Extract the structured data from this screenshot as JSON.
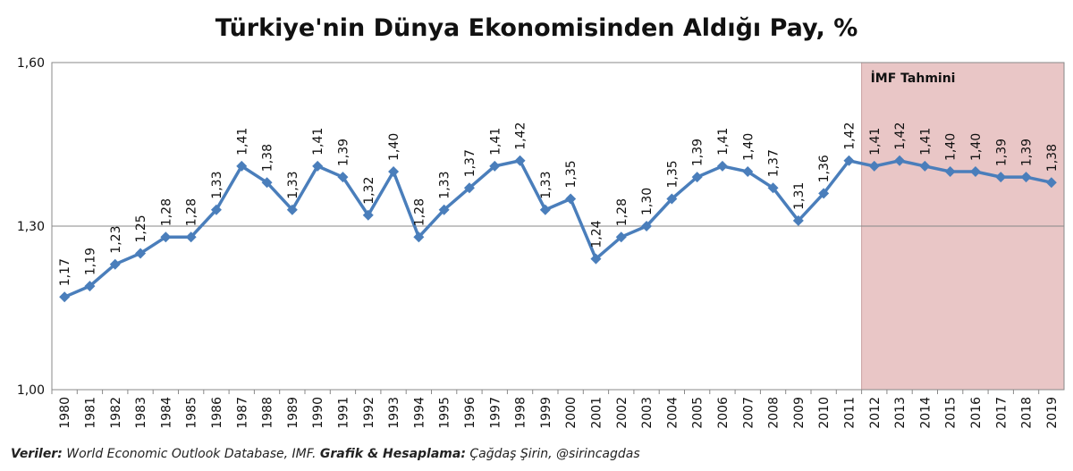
{
  "chart_data": {
    "type": "line",
    "title": "Türkiye'nin Dünya Ekonomisinden Aldığı Pay, %",
    "categories": [
      "1980",
      "1981",
      "1982",
      "1983",
      "1984",
      "1985",
      "1986",
      "1987",
      "1988",
      "1989",
      "1990",
      "1991",
      "1992",
      "1993",
      "1994",
      "1995",
      "1996",
      "1997",
      "1998",
      "1999",
      "2000",
      "2001",
      "2002",
      "2003",
      "2004",
      "2005",
      "2006",
      "2007",
      "2008",
      "2009",
      "2010",
      "2011",
      "2012",
      "2013",
      "2014",
      "2015",
      "2016",
      "2017",
      "2018",
      "2019"
    ],
    "values": [
      1.17,
      1.19,
      1.23,
      1.25,
      1.28,
      1.28,
      1.33,
      1.41,
      1.38,
      1.33,
      1.41,
      1.39,
      1.32,
      1.4,
      1.28,
      1.33,
      1.37,
      1.41,
      1.42,
      1.33,
      1.35,
      1.24,
      1.28,
      1.3,
      1.35,
      1.39,
      1.41,
      1.4,
      1.37,
      1.31,
      1.36,
      1.42,
      1.41,
      1.42,
      1.41,
      1.4,
      1.4,
      1.39,
      1.39,
      1.38
    ],
    "value_labels": [
      "1,17",
      "1,19",
      "1,23",
      "1,25",
      "1,28",
      "1,28",
      "1,33",
      "1,41",
      "1,38",
      "1,33",
      "1,41",
      "1,39",
      "1,32",
      "1,40",
      "1,28",
      "1,33",
      "1,37",
      "1,41",
      "1,42",
      "1,33",
      "1,35",
      "1,24",
      "1,28",
      "1,30",
      "1,35",
      "1,39",
      "1,41",
      "1,40",
      "1,37",
      "1,31",
      "1,36",
      "1,42",
      "1,41",
      "1,42",
      "1,41",
      "1,40",
      "1,40",
      "1,39",
      "1,39",
      "1,38"
    ],
    "color": "#4a7ebb",
    "ylim": [
      1.0,
      1.6
    ],
    "yticks": [
      {
        "value": 1.0,
        "label": "1,00"
      },
      {
        "value": 1.3,
        "label": "1,30"
      },
      {
        "value": 1.6,
        "label": "1,60"
      }
    ],
    "grid": true,
    "shade": {
      "label": "İMF Tahmini",
      "from": "2012",
      "to": "2019",
      "color": "#e9c6c6"
    },
    "source": [
      "Veriler:",
      "World Economic Outlook Database, IMF.",
      "Grafik & Hesaplama:",
      "Çağdaş Şirin, @sirincagdas"
    ]
  }
}
